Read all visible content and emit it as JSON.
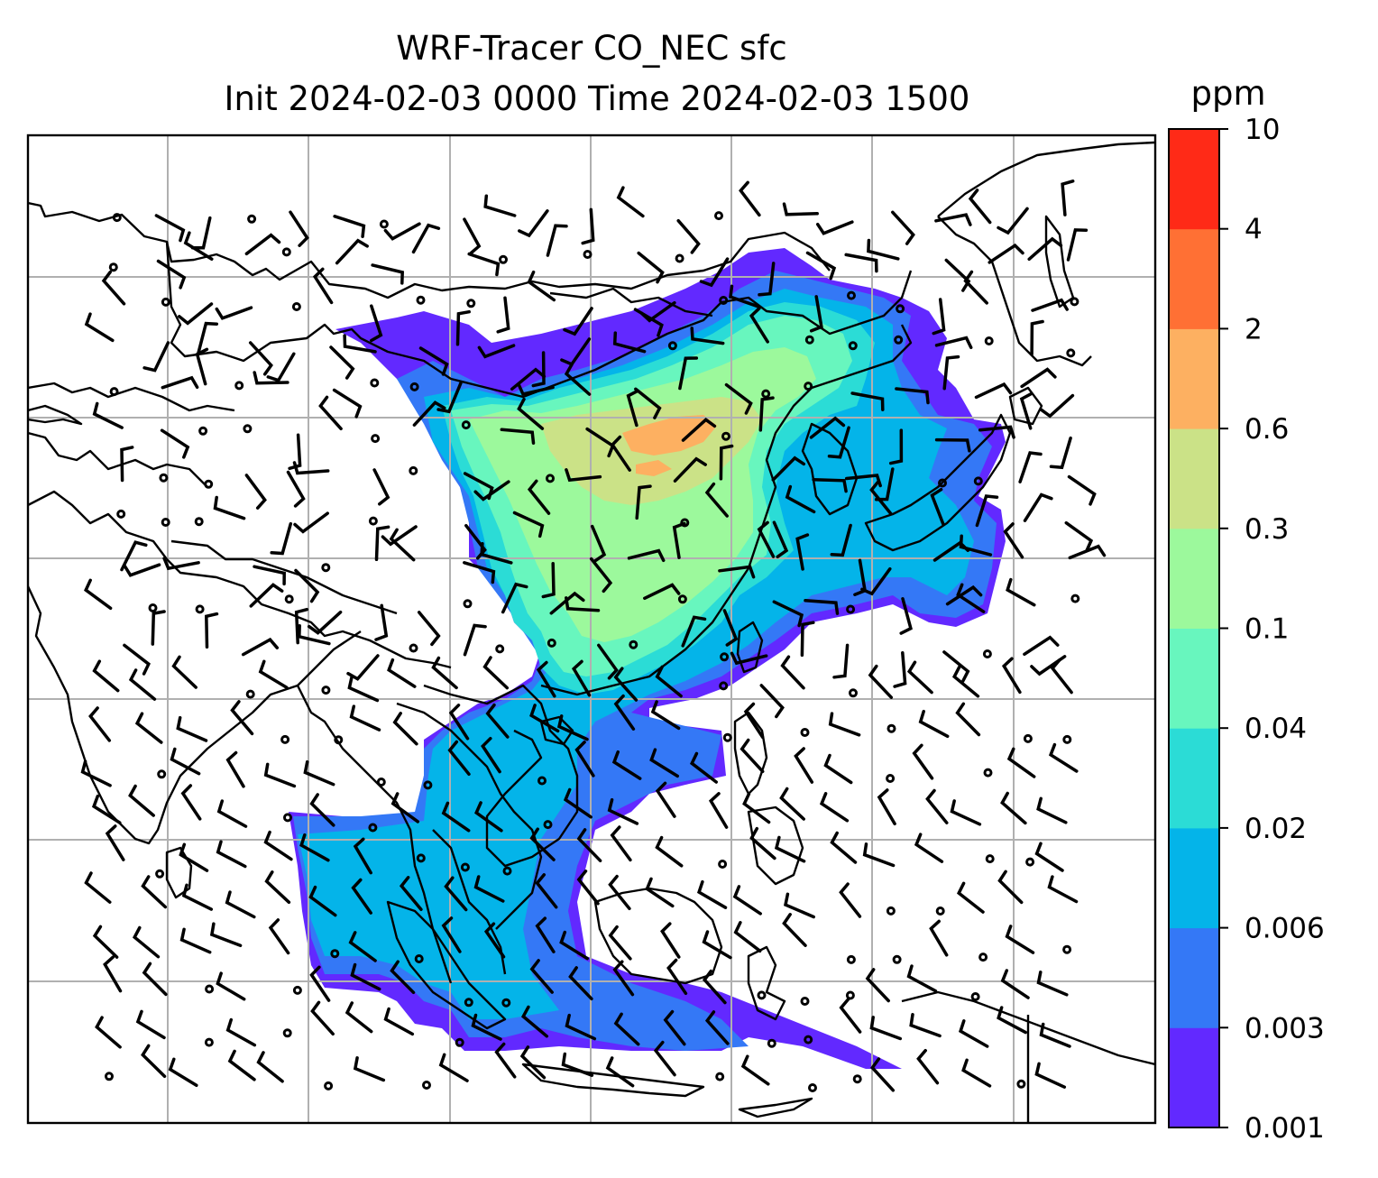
{
  "title": {
    "line1": "WRF-Tracer CO_NEC sfc",
    "line2": "Init 2024-02-03 0000 Time 2024-02-03 1500"
  },
  "colorbar": {
    "unit": "ppm",
    "ticks": [
      "0.001",
      "0.003",
      "0.006",
      "0.02",
      "0.04",
      "0.1",
      "0.3",
      "0.6",
      "2",
      "4",
      "10"
    ],
    "colors": [
      "#6229ff",
      "#3478f6",
      "#04b4e9",
      "#2bdcd6",
      "#68f6be",
      "#9cf99c",
      "#cbe287",
      "#fdb061",
      "#ff7034",
      "#ff2a17"
    ]
  },
  "map": {
    "gridlines": true,
    "coastlines": true,
    "wind_barbs": true,
    "region": "East and Southeast Asia"
  }
}
